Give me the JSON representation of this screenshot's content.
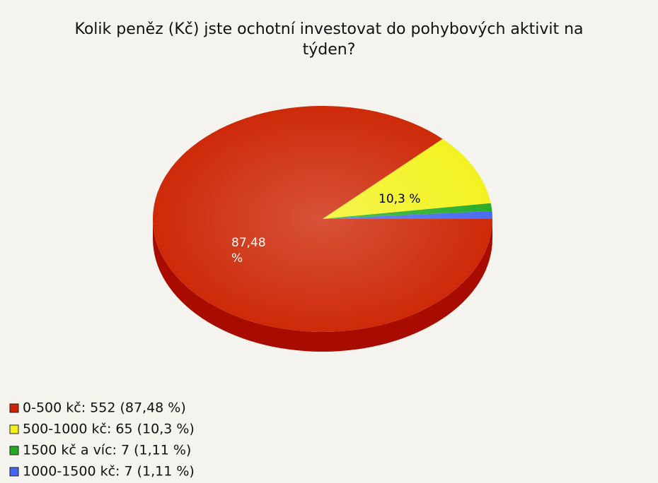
{
  "chart_data": {
    "type": "pie",
    "title": "Kolik peněz (Kč) jste ochotní investovat do pohybových aktivit na týden?",
    "categories": [
      "0-500 kč",
      "500-1000 kč",
      "1500 kč a víc",
      "1000-1500 kč"
    ],
    "values": [
      87.48,
      10.3,
      1.11,
      1.11
    ],
    "value_labels": [
      "87,48 %",
      "10,3 %",
      null,
      null
    ],
    "legend_labels": [
      "0-500 kč: 552 (87,48 %)",
      "500-1000 kč: 65 (10,3 %)",
      "1500 kč a víc: 7 (1,11 %)",
      "1000-1500 kč: 7 (1,11 %)"
    ],
    "colors": [
      "#cc2200",
      "#f2f21a",
      "#22aa22",
      "#4466ee"
    ],
    "legend": "bottom-left"
  }
}
